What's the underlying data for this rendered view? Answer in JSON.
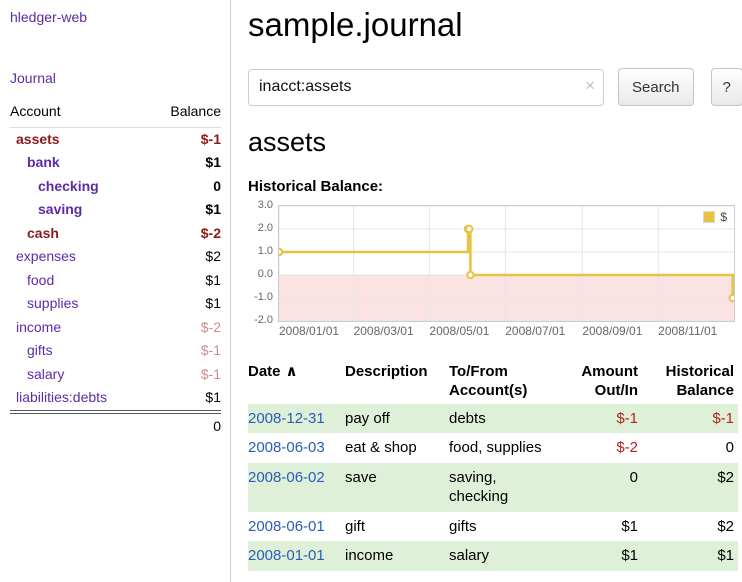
{
  "colors": {
    "accent_purple": "#5f2aa6",
    "link_blue": "#2a5db8",
    "neg_dark": "#8b1a1a",
    "neg_soft": "#c98f8f",
    "neg_red": "#b22222",
    "row_green": "#dff0d8",
    "chart_line": "#e8c240",
    "chart_negative_bg": "#fbe3e3",
    "chart_grid": "#e6e6e6",
    "chart_border": "#cccccc"
  },
  "sidebar": {
    "app_title": "hledger-web",
    "journal_link": "Journal",
    "accounts": {
      "col_account": "Account",
      "col_balance": "Balance",
      "rows": [
        {
          "name": "assets",
          "indent": 0,
          "bold": true,
          "name_negative": true,
          "balance": "$-1",
          "balance_style": "neg-strong"
        },
        {
          "name": "bank",
          "indent": 1,
          "bold": true,
          "name_negative": false,
          "balance": "$1",
          "balance_style": ""
        },
        {
          "name": "checking",
          "indent": 2,
          "bold": true,
          "name_negative": false,
          "balance": "0",
          "balance_style": ""
        },
        {
          "name": "saving",
          "indent": 2,
          "bold": true,
          "name_negative": false,
          "balance": "$1",
          "balance_style": ""
        },
        {
          "name": "cash",
          "indent": 1,
          "bold": true,
          "name_negative": true,
          "balance": "$-2",
          "balance_style": "neg-strong"
        },
        {
          "name": "expenses",
          "indent": 0,
          "bold": false,
          "name_negative": false,
          "balance": "$2",
          "balance_style": ""
        },
        {
          "name": "food",
          "indent": 1,
          "bold": false,
          "name_negative": false,
          "balance": "$1",
          "balance_style": ""
        },
        {
          "name": "supplies",
          "indent": 1,
          "bold": false,
          "name_negative": false,
          "balance": "$1",
          "balance_style": ""
        },
        {
          "name": "income",
          "indent": 0,
          "bold": false,
          "name_negative": false,
          "balance": "$-2",
          "balance_style": "neg-soft"
        },
        {
          "name": "gifts",
          "indent": 1,
          "bold": false,
          "name_negative": false,
          "balance": "$-1",
          "balance_style": "neg-soft"
        },
        {
          "name": "salary",
          "indent": 1,
          "bold": false,
          "name_negative": false,
          "balance": "$-1",
          "balance_style": "neg-soft"
        },
        {
          "name": "liabilities:debts",
          "indent": 0,
          "bold": false,
          "name_negative": false,
          "balance": "$1",
          "balance_style": ""
        }
      ],
      "total": "0"
    }
  },
  "main": {
    "title": "sample.journal",
    "search": {
      "value": "inacct:assets",
      "clear_icon": "×",
      "button_label": "Search",
      "help_label": "?"
    },
    "account_heading": "assets",
    "chart_label": "Historical Balance:"
  },
  "chart_data": {
    "type": "line",
    "step": true,
    "title": "Historical Balance",
    "x_range": [
      "2008-01-01",
      "2009-01-01"
    ],
    "y_range": [
      -2,
      3
    ],
    "x_ticks": [
      "2008/01/01",
      "2008/03/01",
      "2008/05/01",
      "2008/07/01",
      "2008/09/01",
      "2008/11/01"
    ],
    "y_ticks": [
      "3.0",
      "2.0",
      "1.0",
      "0.0",
      "-1.0",
      "-2.0"
    ],
    "series": [
      {
        "name": "$",
        "points": [
          [
            "2008-01-01",
            1
          ],
          [
            "2008-06-01",
            2
          ],
          [
            "2008-06-02",
            2
          ],
          [
            "2008-06-03",
            0
          ],
          [
            "2008-12-31",
            -1
          ]
        ]
      }
    ],
    "legend": {
      "label": "$",
      "position": "top-right"
    },
    "grid": true
  },
  "register": {
    "sort_icon": "∧",
    "columns": [
      {
        "line1": "Date",
        "sorted": "asc",
        "align": "left"
      },
      {
        "line1": "Description",
        "align": "left"
      },
      {
        "line1": "To/From",
        "line2": "Account(s)",
        "align": "left"
      },
      {
        "line1": "Amount",
        "line2": "Out/In",
        "align": "right"
      },
      {
        "line1": "Historical",
        "line2": "Balance",
        "align": "right"
      }
    ],
    "rows": [
      {
        "date": "2008-12-31",
        "description": "pay off",
        "accounts": "debts",
        "amount": "$-1",
        "amount_negative": true,
        "balance": "$-1",
        "balance_negative": true
      },
      {
        "date": "2008-06-03",
        "description": "eat & shop",
        "accounts": "food, supplies",
        "amount": "$-2",
        "amount_negative": true,
        "balance": "0",
        "balance_negative": false
      },
      {
        "date": "2008-06-02",
        "description": "save",
        "accounts": "saving, checking",
        "amount": "0",
        "amount_negative": false,
        "balance": "$2",
        "balance_negative": false
      },
      {
        "date": "2008-06-01",
        "description": "gift",
        "accounts": "gifts",
        "amount": "$1",
        "amount_negative": false,
        "balance": "$2",
        "balance_negative": false
      },
      {
        "date": "2008-01-01",
        "description": "income",
        "accounts": "salary",
        "amount": "$1",
        "amount_negative": false,
        "balance": "$1",
        "balance_negative": false
      }
    ]
  }
}
